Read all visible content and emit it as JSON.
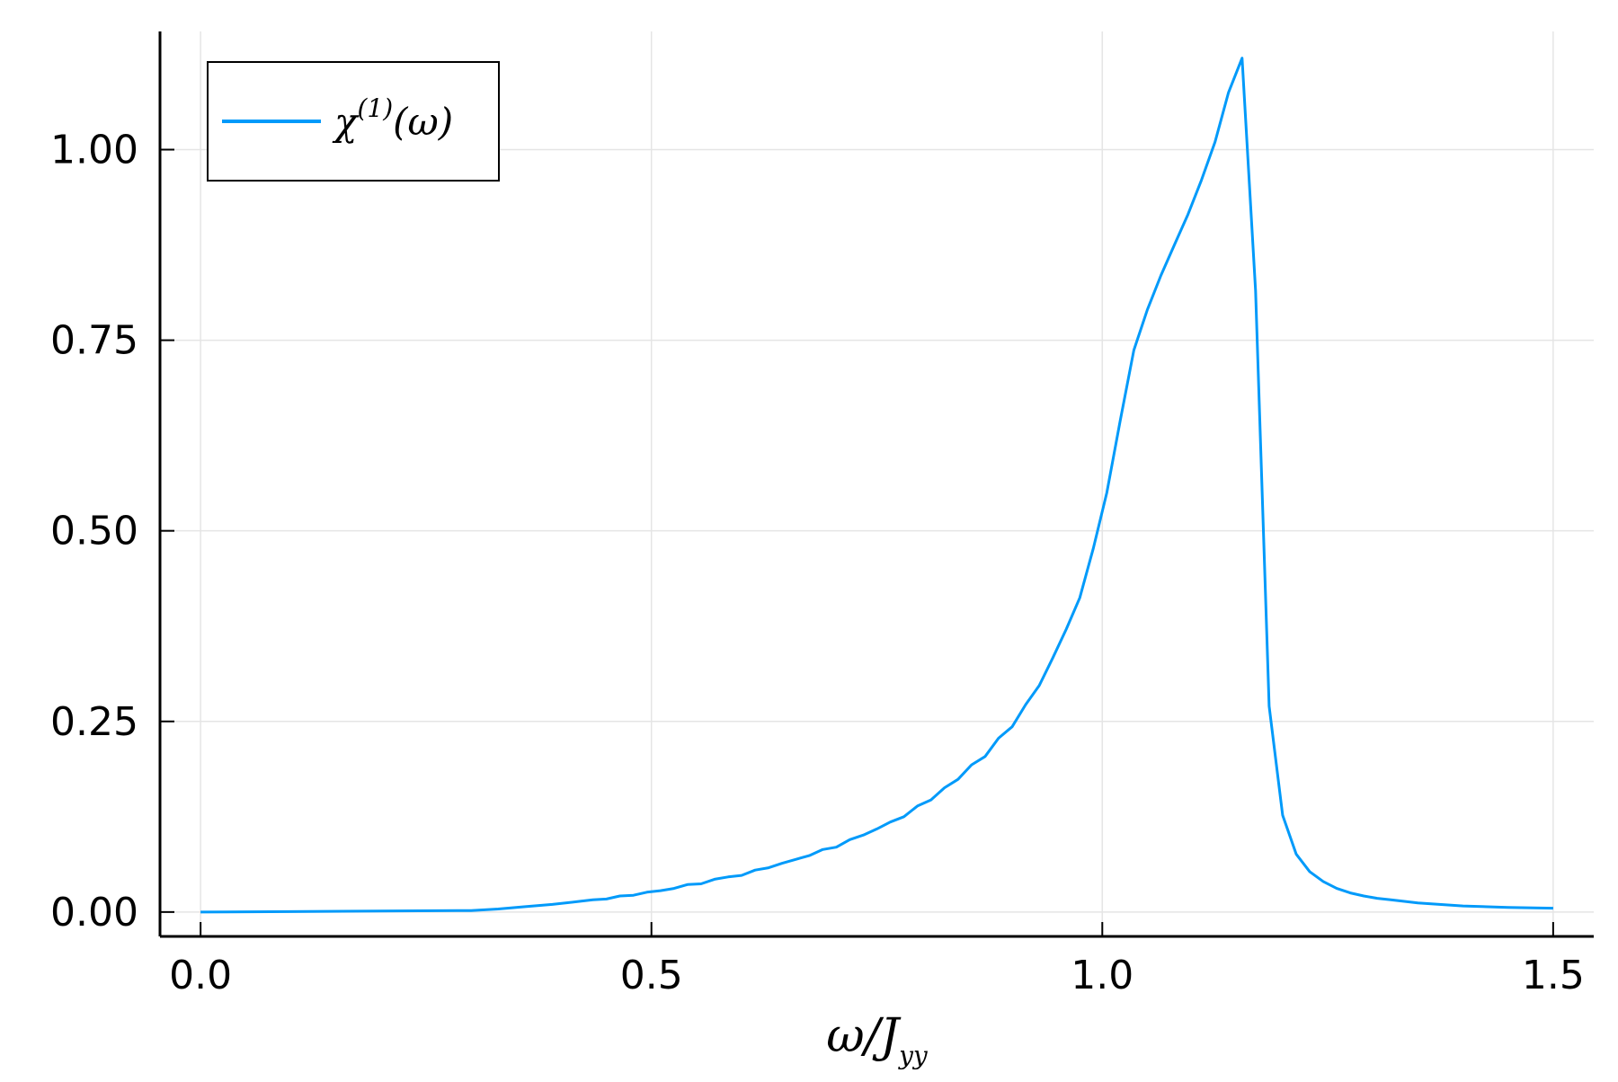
{
  "chart_data": {
    "type": "line",
    "title": "",
    "xlabel": {
      "base": "ω/J",
      "sub": "yy"
    },
    "ylabel": "",
    "xlim": [
      -0.045,
      1.545
    ],
    "ylim": [
      -0.032,
      1.155
    ],
    "xticks": [
      0.0,
      0.5,
      1.0,
      1.5
    ],
    "xtick_labels": [
      "0.0",
      "0.5",
      "1.0",
      "1.5"
    ],
    "yticks": [
      0.0,
      0.25,
      0.5,
      0.75,
      1.0
    ],
    "ytick_labels": [
      "0.00",
      "0.25",
      "0.50",
      "0.75",
      "1.00"
    ],
    "grid": true,
    "legend_position": "top-left",
    "series": [
      {
        "name": "χ(1)(ω)",
        "legend_label": {
          "base": "χ",
          "sup": "(1)",
          "tail": "(ω)"
        },
        "color": "#009AFA",
        "x": [
          0.0,
          0.1,
          0.2,
          0.3,
          0.33,
          0.36,
          0.39,
          0.42,
          0.435,
          0.45,
          0.465,
          0.48,
          0.495,
          0.51,
          0.525,
          0.54,
          0.555,
          0.57,
          0.585,
          0.6,
          0.615,
          0.63,
          0.645,
          0.66,
          0.675,
          0.69,
          0.705,
          0.72,
          0.735,
          0.75,
          0.765,
          0.78,
          0.795,
          0.81,
          0.825,
          0.84,
          0.855,
          0.87,
          0.885,
          0.9,
          0.915,
          0.93,
          0.945,
          0.96,
          0.975,
          0.99,
          1.005,
          1.02,
          1.035,
          1.05,
          1.065,
          1.08,
          1.095,
          1.11,
          1.125,
          1.14,
          1.155,
          1.17,
          1.185,
          1.2,
          1.215,
          1.23,
          1.245,
          1.26,
          1.275,
          1.29,
          1.305,
          1.32,
          1.35,
          1.4,
          1.45,
          1.5
        ],
        "y": [
          0.0,
          0.0005,
          0.0012,
          0.002,
          0.004,
          0.007,
          0.01,
          0.014,
          0.016,
          0.017,
          0.021,
          0.022,
          0.026,
          0.028,
          0.031,
          0.036,
          0.037,
          0.043,
          0.046,
          0.048,
          0.055,
          0.058,
          0.064,
          0.069,
          0.074,
          0.082,
          0.085,
          0.095,
          0.101,
          0.109,
          0.118,
          0.125,
          0.139,
          0.147,
          0.163,
          0.174,
          0.193,
          0.204,
          0.228,
          0.243,
          0.272,
          0.297,
          0.333,
          0.371,
          0.412,
          0.477,
          0.55,
          0.645,
          0.737,
          0.79,
          0.835,
          0.875,
          0.915,
          0.96,
          1.01,
          1.075,
          1.12,
          0.815,
          0.27,
          0.127,
          0.076,
          0.053,
          0.04,
          0.031,
          0.025,
          0.021,
          0.018,
          0.016,
          0.012,
          0.008,
          0.006,
          0.005
        ]
      }
    ]
  }
}
